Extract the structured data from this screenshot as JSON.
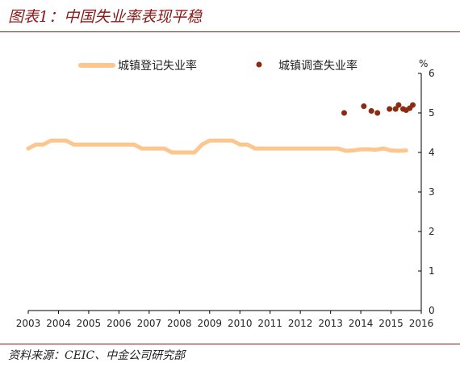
{
  "figure": {
    "title": "图表1：中国失业率表现平稳",
    "source": "资料来源：CEIC、中金公司研究部"
  },
  "chart_data": {
    "type": "line",
    "xlim": [
      2003,
      2016
    ],
    "ylim": [
      0,
      6
    ],
    "x_ticks": [
      "2003",
      "2004",
      "2005",
      "2006",
      "2007",
      "2008",
      "2009",
      "2010",
      "2011",
      "2012",
      "2013",
      "2014",
      "2015",
      "2016"
    ],
    "y_ticks": [
      "0",
      "1",
      "2",
      "3",
      "4",
      "5",
      "6"
    ],
    "y_unit": "%",
    "y_axis_side": "right",
    "grid": false,
    "legend_position": "top",
    "series": [
      {
        "name": "城镇登记失业率",
        "kind": "line",
        "color": "#fbc78e",
        "points": [
          [
            2003.0,
            4.1
          ],
          [
            2003.25,
            4.2
          ],
          [
            2003.5,
            4.2
          ],
          [
            2003.75,
            4.3
          ],
          [
            2004.0,
            4.3
          ],
          [
            2004.25,
            4.3
          ],
          [
            2004.5,
            4.2
          ],
          [
            2004.75,
            4.2
          ],
          [
            2005.0,
            4.2
          ],
          [
            2005.25,
            4.2
          ],
          [
            2005.5,
            4.2
          ],
          [
            2005.75,
            4.2
          ],
          [
            2006.0,
            4.2
          ],
          [
            2006.25,
            4.2
          ],
          [
            2006.5,
            4.2
          ],
          [
            2006.75,
            4.1
          ],
          [
            2007.0,
            4.1
          ],
          [
            2007.25,
            4.1
          ],
          [
            2007.5,
            4.1
          ],
          [
            2007.75,
            4.0
          ],
          [
            2008.0,
            4.0
          ],
          [
            2008.25,
            4.0
          ],
          [
            2008.5,
            4.0
          ],
          [
            2008.75,
            4.2
          ],
          [
            2009.0,
            4.3
          ],
          [
            2009.25,
            4.3
          ],
          [
            2009.5,
            4.3
          ],
          [
            2009.75,
            4.3
          ],
          [
            2010.0,
            4.2
          ],
          [
            2010.25,
            4.2
          ],
          [
            2010.5,
            4.1
          ],
          [
            2010.75,
            4.1
          ],
          [
            2011.0,
            4.1
          ],
          [
            2011.25,
            4.1
          ],
          [
            2011.5,
            4.1
          ],
          [
            2011.75,
            4.1
          ],
          [
            2012.0,
            4.1
          ],
          [
            2012.25,
            4.1
          ],
          [
            2012.5,
            4.1
          ],
          [
            2012.75,
            4.1
          ],
          [
            2013.0,
            4.1
          ],
          [
            2013.25,
            4.1
          ],
          [
            2013.5,
            4.04
          ],
          [
            2013.75,
            4.05
          ],
          [
            2014.0,
            4.08
          ],
          [
            2014.25,
            4.08
          ],
          [
            2014.5,
            4.07
          ],
          [
            2014.75,
            4.1
          ],
          [
            2015.0,
            4.05
          ],
          [
            2015.25,
            4.04
          ],
          [
            2015.5,
            4.05
          ]
        ]
      },
      {
        "name": "城镇调查失业率",
        "kind": "scatter",
        "color": "#8b2c12",
        "points": [
          [
            2013.45,
            5.0
          ],
          [
            2014.1,
            5.17
          ],
          [
            2014.35,
            5.05
          ],
          [
            2014.55,
            5.0
          ],
          [
            2014.95,
            5.1
          ],
          [
            2015.15,
            5.1
          ],
          [
            2015.25,
            5.2
          ],
          [
            2015.4,
            5.1
          ],
          [
            2015.5,
            5.07
          ],
          [
            2015.62,
            5.12
          ],
          [
            2015.72,
            5.2
          ]
        ]
      }
    ]
  }
}
